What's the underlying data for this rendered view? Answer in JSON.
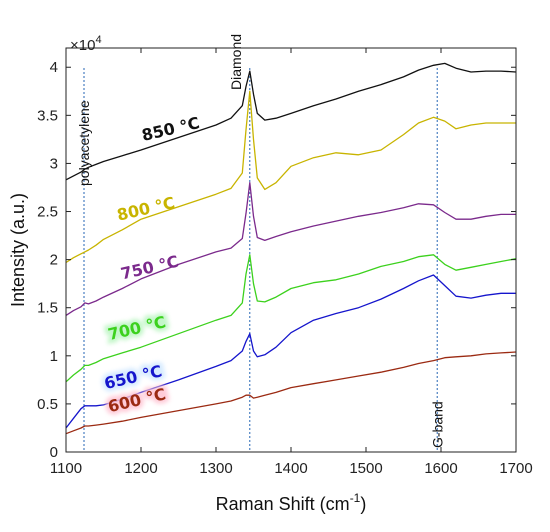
{
  "chart_data": {
    "type": "line",
    "xlabel": "Raman Shift (cm",
    "xlabel_sup": "-1",
    "xlabel_tail": ")",
    "ylabel": "Intensity (a.u.)",
    "y_multiplier": "×10",
    "y_multiplier_exp": "4",
    "xlim": [
      1100,
      1700
    ],
    "ylim": [
      0,
      4.2
    ],
    "x_ticks": [
      "1100",
      "1200",
      "1300",
      "1400",
      "1500",
      "1600",
      "1700"
    ],
    "y_ticks": [
      "0",
      "0.5",
      "1",
      "1.5",
      "2",
      "2.5",
      "3",
      "3.5",
      "4"
    ],
    "grid": false,
    "reference_lines": [
      {
        "x": 1124,
        "label": "polyacetylene"
      },
      {
        "x": 1345,
        "label": "Diamond"
      },
      {
        "x": 1595,
        "label": "G-band"
      }
    ],
    "x": [
      1100,
      1110,
      1120,
      1125,
      1130,
      1140,
      1150,
      1175,
      1200,
      1250,
      1300,
      1320,
      1335,
      1340,
      1345,
      1350,
      1355,
      1365,
      1380,
      1400,
      1430,
      1460,
      1490,
      1520,
      1550,
      1570,
      1590,
      1605,
      1620,
      1640,
      1660,
      1680,
      1700
    ],
    "series": [
      {
        "name": "850 °C",
        "color": "#111111",
        "values": [
          2.83,
          2.87,
          2.91,
          2.94,
          2.96,
          2.99,
          3.02,
          3.08,
          3.14,
          3.27,
          3.4,
          3.47,
          3.6,
          3.8,
          3.96,
          3.72,
          3.52,
          3.45,
          3.47,
          3.52,
          3.6,
          3.67,
          3.75,
          3.82,
          3.9,
          3.97,
          4.02,
          4.04,
          3.99,
          3.95,
          3.96,
          3.96,
          3.95
        ]
      },
      {
        "name": "800 °C",
        "color": "#c8b400",
        "values": [
          1.97,
          2.02,
          2.06,
          2.08,
          2.1,
          2.15,
          2.21,
          2.31,
          2.42,
          2.55,
          2.68,
          2.74,
          2.9,
          3.35,
          3.75,
          3.25,
          2.85,
          2.73,
          2.8,
          2.97,
          3.06,
          3.11,
          3.09,
          3.14,
          3.3,
          3.42,
          3.48,
          3.44,
          3.36,
          3.4,
          3.42,
          3.42,
          3.42
        ]
      },
      {
        "name": "750 °C",
        "color": "#7b2a8c",
        "values": [
          1.42,
          1.47,
          1.51,
          1.55,
          1.54,
          1.57,
          1.61,
          1.7,
          1.8,
          1.95,
          2.08,
          2.12,
          2.22,
          2.48,
          2.8,
          2.45,
          2.23,
          2.2,
          2.24,
          2.29,
          2.35,
          2.4,
          2.45,
          2.49,
          2.54,
          2.58,
          2.57,
          2.49,
          2.42,
          2.42,
          2.45,
          2.47,
          2.47
        ]
      },
      {
        "name": "700 °C",
        "color": "#3cd11d",
        "values": [
          0.73,
          0.8,
          0.86,
          0.9,
          0.9,
          0.93,
          0.97,
          1.03,
          1.09,
          1.23,
          1.37,
          1.42,
          1.55,
          1.85,
          2.05,
          1.75,
          1.57,
          1.56,
          1.61,
          1.7,
          1.76,
          1.79,
          1.85,
          1.93,
          1.98,
          2.03,
          2.05,
          1.95,
          1.89,
          1.92,
          1.95,
          1.98,
          2.01
        ]
      },
      {
        "name": "650 °C",
        "color": "#1515cc",
        "values": [
          0.25,
          0.35,
          0.45,
          0.48,
          0.48,
          0.48,
          0.49,
          0.55,
          0.62,
          0.75,
          0.89,
          0.95,
          1.05,
          1.15,
          1.23,
          1.05,
          0.99,
          1.01,
          1.09,
          1.24,
          1.37,
          1.44,
          1.5,
          1.59,
          1.7,
          1.78,
          1.84,
          1.73,
          1.62,
          1.6,
          1.63,
          1.65,
          1.65
        ]
      },
      {
        "name": "600 °C",
        "color": "#9b2a12",
        "values": [
          0.19,
          0.22,
          0.25,
          0.27,
          0.27,
          0.28,
          0.29,
          0.32,
          0.36,
          0.43,
          0.5,
          0.53,
          0.57,
          0.59,
          0.59,
          0.56,
          0.57,
          0.59,
          0.62,
          0.67,
          0.71,
          0.75,
          0.79,
          0.83,
          0.88,
          0.92,
          0.95,
          0.98,
          0.99,
          1.0,
          1.02,
          1.03,
          1.04
        ]
      }
    ]
  }
}
